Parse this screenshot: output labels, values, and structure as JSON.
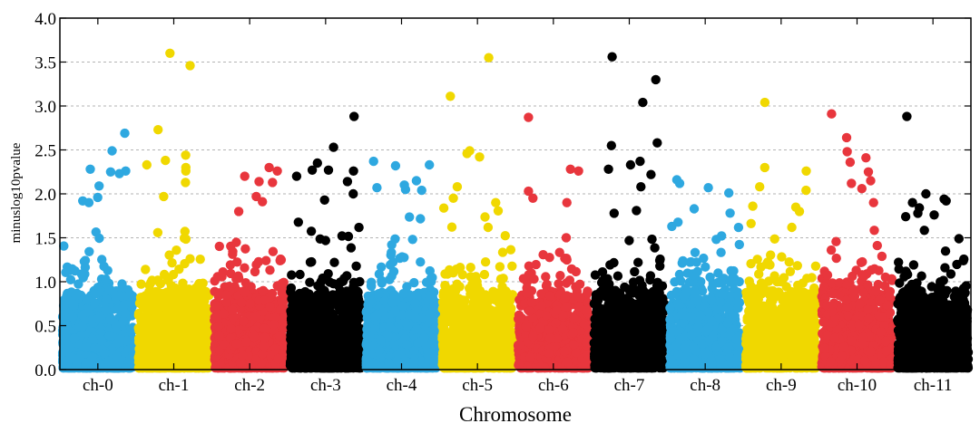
{
  "chart_data": {
    "type": "scatter",
    "title": "",
    "xlabel": "Chromosome",
    "ylabel": "minuslog10pvalue",
    "ylim": [
      0,
      4.0
    ],
    "y_ticks": [
      0.0,
      0.5,
      1.0,
      1.5,
      2.0,
      2.5,
      3.0,
      3.5,
      4.0
    ],
    "y_tick_labels": [
      "0.0",
      "0.5",
      "1.0",
      "1.5",
      "2.0",
      "2.5",
      "3.0",
      "3.5",
      "4.0"
    ],
    "grid": "horizontal dashed",
    "legend": "none",
    "points_per_chromosome_approx": 900,
    "colors": {
      "blue": "#2ea8e0",
      "yellow": "#f0d800",
      "red": "#e8363d",
      "black": "#000000",
      "grid": "#9a9a9a"
    },
    "categories": [
      "ch-0",
      "ch-1",
      "ch-2",
      "ch-3",
      "ch-4",
      "ch-5",
      "ch-6",
      "ch-7",
      "ch-8",
      "ch-9",
      "ch-10",
      "ch-11"
    ],
    "series": [
      {
        "category": "ch-0",
        "color": "blue",
        "top_values": [
          2.69,
          2.49,
          2.28,
          2.26,
          2.25,
          2.23,
          2.09,
          1.96,
          1.92,
          1.9
        ]
      },
      {
        "category": "ch-1",
        "color": "yellow",
        "top_values": [
          3.6,
          3.46,
          2.73,
          2.44,
          2.38,
          2.33,
          2.3,
          2.26,
          2.13,
          1.97
        ]
      },
      {
        "category": "ch-2",
        "color": "red",
        "top_values": [
          2.3,
          2.26,
          2.2,
          2.14,
          2.13,
          1.97,
          1.91,
          1.8
        ]
      },
      {
        "category": "ch-3",
        "color": "black",
        "top_values": [
          2.88,
          2.53,
          2.35,
          2.27,
          2.27,
          2.26,
          2.2,
          2.14,
          2.0,
          1.93
        ]
      },
      {
        "category": "ch-4",
        "color": "blue",
        "top_values": [
          2.37,
          2.33,
          2.32,
          2.15,
          2.1,
          2.07,
          2.05,
          2.04
        ]
      },
      {
        "category": "ch-5",
        "color": "yellow",
        "top_values": [
          3.55,
          3.11,
          2.49,
          2.46,
          2.42,
          2.08,
          1.95,
          1.9
        ]
      },
      {
        "category": "ch-6",
        "color": "red",
        "top_values": [
          2.87,
          2.28,
          2.26,
          2.03,
          1.95,
          1.9
        ]
      },
      {
        "category": "ch-7",
        "color": "black",
        "top_values": [
          3.56,
          3.3,
          3.04,
          2.58,
          2.55,
          2.37,
          2.33,
          2.28,
          2.22,
          2.08
        ]
      },
      {
        "category": "ch-8",
        "color": "blue",
        "top_values": [
          2.16,
          2.12,
          2.07,
          2.01,
          1.83,
          1.78
        ]
      },
      {
        "category": "ch-9",
        "color": "yellow",
        "top_values": [
          3.04,
          2.3,
          2.26,
          2.08,
          2.04,
          1.86,
          1.8
        ]
      },
      {
        "category": "ch-10",
        "color": "red",
        "top_values": [
          2.91,
          2.64,
          2.48,
          2.41,
          2.36,
          2.25,
          2.15,
          2.12,
          2.06,
          1.9
        ]
      },
      {
        "category": "ch-11",
        "color": "black",
        "top_values": [
          2.88,
          2.0,
          1.94,
          1.92,
          1.9,
          1.84,
          1.76,
          1.74
        ]
      }
    ]
  }
}
